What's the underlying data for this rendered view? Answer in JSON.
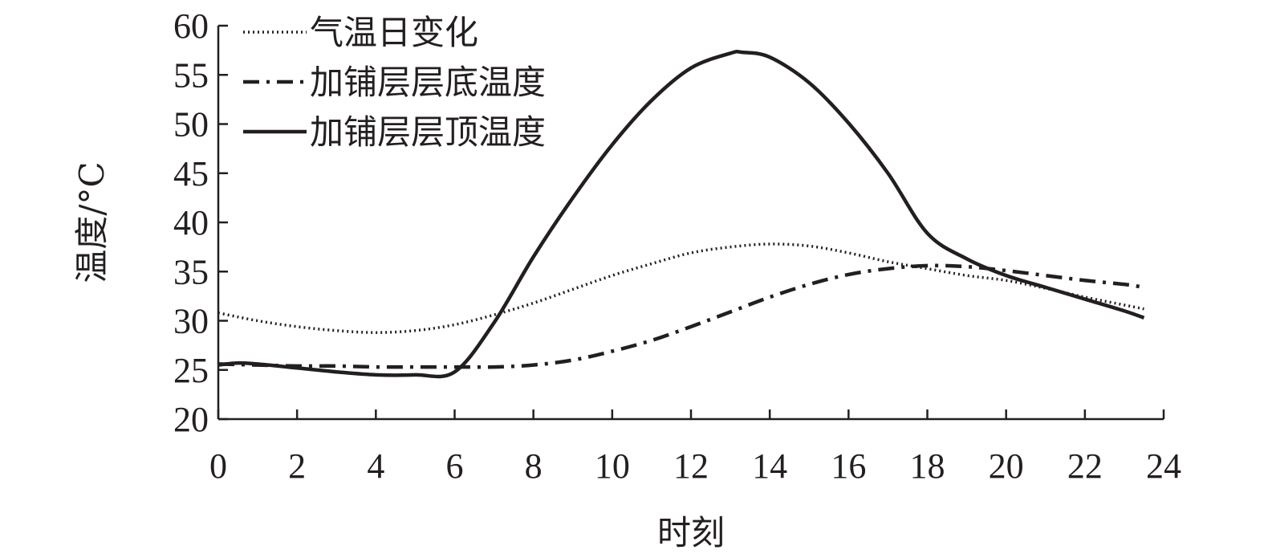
{
  "chart_data": {
    "type": "line",
    "xlabel": "时刻",
    "ylabel": "温度/°C",
    "xlim": [
      0,
      24
    ],
    "ylim": [
      20,
      60
    ],
    "xticks": [
      "0",
      "2",
      "4",
      "6",
      "8",
      "10",
      "12",
      "14",
      "16",
      "18",
      "20",
      "22",
      "24"
    ],
    "yticks": [
      "20",
      "25",
      "30",
      "35",
      "40",
      "45",
      "50",
      "55",
      "60"
    ],
    "grid": false,
    "legend_position": "top-left",
    "series": [
      {
        "name": "气温日变化",
        "style": "dotted",
        "x": [
          0,
          1,
          2,
          3,
          4,
          5,
          6,
          7,
          8,
          9,
          10,
          11,
          12,
          13,
          14,
          15,
          16,
          17,
          18,
          19,
          20,
          21,
          22,
          23,
          23.5
        ],
        "y": [
          30.8,
          30.0,
          29.4,
          29.0,
          28.8,
          29.0,
          29.6,
          30.6,
          31.8,
          33.2,
          34.6,
          35.8,
          36.9,
          37.5,
          37.8,
          37.6,
          36.9,
          36.0,
          35.3,
          34.6,
          34.1,
          33.3,
          32.4,
          31.6,
          31.2
        ]
      },
      {
        "name": "加铺层层底温度",
        "style": "dash-dot",
        "x": [
          0,
          1,
          2,
          3,
          4,
          5,
          6,
          7,
          8,
          9,
          10,
          11,
          12,
          13,
          14,
          15,
          16,
          17,
          18,
          19,
          20,
          21,
          22,
          23,
          23.5
        ],
        "y": [
          25.6,
          25.5,
          25.4,
          25.4,
          25.3,
          25.3,
          25.3,
          25.3,
          25.5,
          26.0,
          26.9,
          28.0,
          29.4,
          30.9,
          32.4,
          33.7,
          34.7,
          35.3,
          35.6,
          35.5,
          35.1,
          34.6,
          34.1,
          33.7,
          33.4
        ]
      },
      {
        "name": "加铺层层顶温度",
        "style": "solid",
        "x": [
          0,
          0.5,
          1,
          2,
          3,
          4,
          5,
          6,
          7,
          8,
          9,
          10,
          11,
          12,
          13,
          13.3,
          14,
          15,
          16,
          17,
          18,
          19,
          20,
          21,
          22,
          23,
          23.5
        ],
        "y": [
          25.5,
          25.7,
          25.6,
          25.2,
          24.8,
          24.5,
          24.5,
          24.8,
          29.8,
          36.5,
          42.5,
          47.9,
          52.4,
          55.7,
          57.2,
          57.3,
          56.8,
          54.2,
          50.1,
          45.0,
          38.9,
          36.3,
          34.6,
          33.4,
          32.2,
          31.0,
          30.3
        ]
      }
    ]
  }
}
